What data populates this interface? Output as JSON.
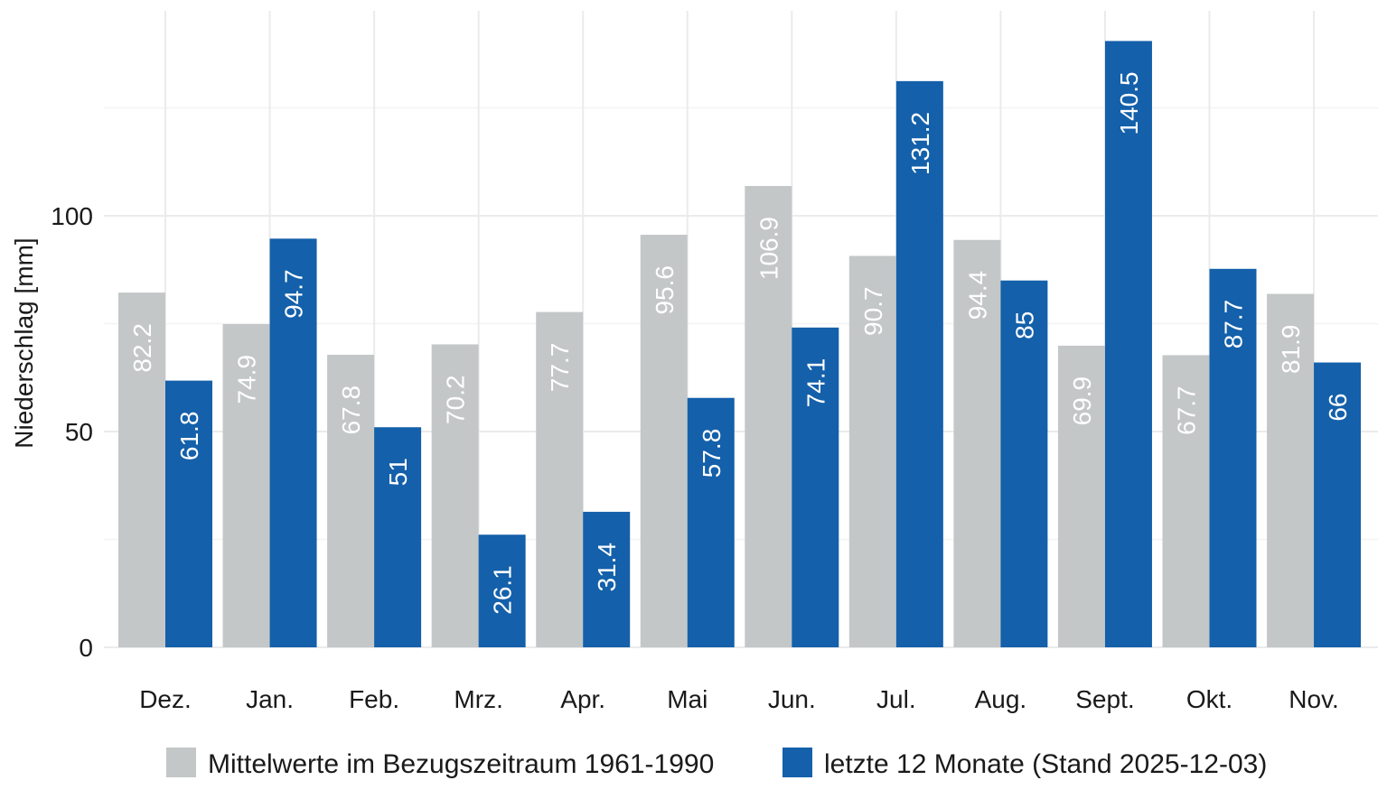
{
  "chart_data": {
    "type": "bar",
    "title": "",
    "xlabel": "",
    "ylabel": "Niederschlag [mm]",
    "ylim": [
      0,
      150
    ],
    "yticks": [
      0,
      50,
      100
    ],
    "grid": true,
    "legend_position": "bottom",
    "categories": [
      "Dez.",
      "Jan.",
      "Feb.",
      "Mrz.",
      "Apr.",
      "Mai",
      "Jun.",
      "Jul.",
      "Aug.",
      "Sept.",
      "Okt.",
      "Nov."
    ],
    "series": [
      {
        "name": "Mittelwerte im Bezugszeitraum 1961-1990",
        "color": "#c4c7c8",
        "values": [
          82.2,
          74.9,
          67.8,
          70.2,
          77.7,
          95.6,
          106.9,
          90.7,
          94.4,
          69.9,
          67.7,
          81.9
        ]
      },
      {
        "name": "letzte 12 Monate (Stand 2025-12-03)",
        "color": "#1460aa",
        "values": [
          61.8,
          94.7,
          51,
          26.1,
          31.4,
          57.8,
          74.1,
          131.2,
          85,
          140.5,
          87.7,
          66
        ]
      }
    ]
  }
}
